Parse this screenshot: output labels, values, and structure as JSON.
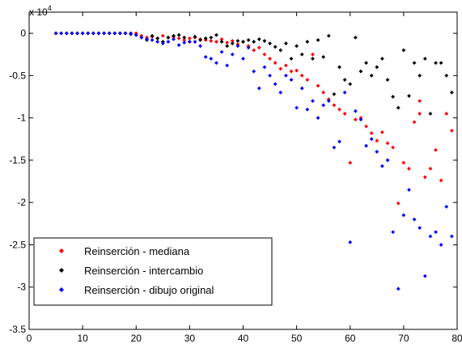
{
  "chart_data": {
    "type": "scatter",
    "title": "",
    "xlabel": "",
    "ylabel": "",
    "y_exponent_label": "x 10",
    "y_exponent_power": "4",
    "xlim": [
      0,
      80
    ],
    "ylim": [
      -3.5,
      0.25
    ],
    "grid": false,
    "legend_position": "bottom-left",
    "x_ticks": [
      "0",
      "10",
      "20",
      "30",
      "40",
      "50",
      "60",
      "70",
      "80"
    ],
    "y_ticks": [
      "0",
      "-0.5",
      "-1",
      "-1.5",
      "-2",
      "-2.5",
      "-3",
      "-3.5"
    ],
    "series": [
      {
        "name": "Reinserción - mediana",
        "color": "#ff0000",
        "points": [
          [
            5,
            0
          ],
          [
            6,
            0
          ],
          [
            7,
            0
          ],
          [
            8,
            0
          ],
          [
            9,
            0
          ],
          [
            10,
            0
          ],
          [
            11,
            0
          ],
          [
            12,
            0
          ],
          [
            13,
            0
          ],
          [
            14,
            0
          ],
          [
            15,
            0
          ],
          [
            16,
            0
          ],
          [
            17,
            0
          ],
          [
            18,
            0
          ],
          [
            19,
            0
          ],
          [
            20,
            0
          ],
          [
            21,
            -0.03
          ],
          [
            22,
            -0.05
          ],
          [
            23,
            -0.04
          ],
          [
            24,
            -0.06
          ],
          [
            25,
            -0.03
          ],
          [
            26,
            -0.05
          ],
          [
            27,
            -0.04
          ],
          [
            28,
            -0.06
          ],
          [
            29,
            -0.08
          ],
          [
            30,
            -0.06
          ],
          [
            31,
            -0.05
          ],
          [
            32,
            -0.07
          ],
          [
            33,
            -0.08
          ],
          [
            34,
            -0.09
          ],
          [
            35,
            -0.1
          ],
          [
            36,
            -0.07
          ],
          [
            37,
            -0.11
          ],
          [
            38,
            -0.09
          ],
          [
            39,
            -0.13
          ],
          [
            40,
            -0.1
          ],
          [
            41,
            -0.15
          ],
          [
            42,
            -0.2
          ],
          [
            43,
            -0.17
          ],
          [
            44,
            -0.25
          ],
          [
            45,
            -0.3
          ],
          [
            46,
            -0.35
          ],
          [
            47,
            -0.42
          ],
          [
            48,
            -0.38
          ],
          [
            49,
            -0.45
          ],
          [
            50,
            -0.44
          ],
          [
            51,
            -0.5
          ],
          [
            52,
            -0.55
          ],
          [
            53,
            -0.25
          ],
          [
            54,
            -0.62
          ],
          [
            55,
            -0.7
          ],
          [
            56,
            -0.78
          ],
          [
            57,
            -0.85
          ],
          [
            58,
            -0.9
          ],
          [
            59,
            -0.95
          ],
          [
            60,
            -1.53
          ],
          [
            61,
            -1.02
          ],
          [
            62,
            -1.0
          ],
          [
            63,
            -1.1
          ],
          [
            64,
            -1.18
          ],
          [
            65,
            -1.27
          ],
          [
            66,
            -1.17
          ],
          [
            67,
            -1.3
          ],
          [
            68,
            -1.35
          ],
          [
            69,
            -2.01
          ],
          [
            70,
            -1.53
          ],
          [
            71,
            -1.6
          ],
          [
            72,
            -1.05
          ],
          [
            73,
            -0.8
          ],
          [
            74,
            -1.7
          ],
          [
            75,
            -1.6
          ],
          [
            76,
            -1.38
          ],
          [
            77,
            -1.74
          ],
          [
            78,
            -0.95
          ],
          [
            79,
            -1.15
          ],
          [
            73,
            -0.95
          ]
        ]
      },
      {
        "name": "Reinserción - intercambio",
        "color": "#000000",
        "points": [
          [
            5,
            0
          ],
          [
            6,
            0
          ],
          [
            7,
            0
          ],
          [
            8,
            0
          ],
          [
            9,
            0
          ],
          [
            10,
            0
          ],
          [
            11,
            0
          ],
          [
            12,
            0
          ],
          [
            13,
            0
          ],
          [
            14,
            0
          ],
          [
            15,
            0
          ],
          [
            16,
            0
          ],
          [
            17,
            0
          ],
          [
            18,
            0
          ],
          [
            19,
            -0.01
          ],
          [
            20,
            -0.02
          ],
          [
            21,
            -0.05
          ],
          [
            22,
            -0.08
          ],
          [
            23,
            -0.03
          ],
          [
            24,
            -0.06
          ],
          [
            25,
            -0.1
          ],
          [
            26,
            -0.05
          ],
          [
            27,
            -0.03
          ],
          [
            28,
            -0.02
          ],
          [
            29,
            -0.05
          ],
          [
            30,
            -0.1
          ],
          [
            31,
            -0.04
          ],
          [
            32,
            -0.08
          ],
          [
            33,
            -0.06
          ],
          [
            34,
            -0.05
          ],
          [
            35,
            -0.02
          ],
          [
            36,
            -0.1
          ],
          [
            37,
            -0.15
          ],
          [
            38,
            -0.12
          ],
          [
            39,
            -0.09
          ],
          [
            40,
            -0.1
          ],
          [
            41,
            -0.08
          ],
          [
            42,
            -0.1
          ],
          [
            43,
            -0.07
          ],
          [
            44,
            -0.09
          ],
          [
            45,
            -0.12
          ],
          [
            46,
            -0.16
          ],
          [
            47,
            -0.2
          ],
          [
            48,
            -0.12
          ],
          [
            49,
            -0.3
          ],
          [
            50,
            -0.15
          ],
          [
            51,
            -0.25
          ],
          [
            52,
            -0.1
          ],
          [
            53,
            -0.3
          ],
          [
            54,
            -0.08
          ],
          [
            55,
            -0.28
          ],
          [
            56,
            -0.03
          ],
          [
            57,
            -0.72
          ],
          [
            58,
            -0.4
          ],
          [
            59,
            -0.55
          ],
          [
            60,
            -0.6
          ],
          [
            61,
            -0.05
          ],
          [
            62,
            -0.45
          ],
          [
            63,
            -0.35
          ],
          [
            64,
            -0.5
          ],
          [
            65,
            -0.4
          ],
          [
            66,
            -0.3
          ],
          [
            67,
            -0.55
          ],
          [
            68,
            -0.75
          ],
          [
            69,
            -0.88
          ],
          [
            70,
            -0.2
          ],
          [
            71,
            -0.74
          ],
          [
            72,
            -0.35
          ],
          [
            73,
            -0.5
          ],
          [
            74,
            -0.3
          ],
          [
            75,
            -0.95
          ],
          [
            76,
            -0.35
          ],
          [
            77,
            -0.35
          ],
          [
            78,
            -0.5
          ],
          [
            79,
            -0.7
          ]
        ]
      },
      {
        "name": "Reinserción - dibujo original",
        "color": "#0000ff",
        "points": [
          [
            5,
            0
          ],
          [
            6,
            0
          ],
          [
            7,
            0
          ],
          [
            8,
            0
          ],
          [
            9,
            0
          ],
          [
            10,
            0
          ],
          [
            11,
            0
          ],
          [
            12,
            0
          ],
          [
            13,
            0
          ],
          [
            14,
            0
          ],
          [
            15,
            0
          ],
          [
            16,
            0
          ],
          [
            17,
            0
          ],
          [
            18,
            0
          ],
          [
            19,
            0
          ],
          [
            20,
            -0.02
          ],
          [
            21,
            -0.05
          ],
          [
            22,
            -0.07
          ],
          [
            23,
            -0.08
          ],
          [
            24,
            -0.1
          ],
          [
            25,
            -0.12
          ],
          [
            26,
            -0.1
          ],
          [
            27,
            -0.07
          ],
          [
            28,
            -0.14
          ],
          [
            29,
            -0.11
          ],
          [
            30,
            -0.1
          ],
          [
            31,
            -0.1
          ],
          [
            32,
            -0.15
          ],
          [
            33,
            -0.28
          ],
          [
            34,
            -0.3
          ],
          [
            35,
            -0.35
          ],
          [
            36,
            -0.22
          ],
          [
            37,
            -0.38
          ],
          [
            38,
            -0.25
          ],
          [
            39,
            -0.15
          ],
          [
            40,
            -0.3
          ],
          [
            41,
            -0.17
          ],
          [
            42,
            -0.45
          ],
          [
            43,
            -0.65
          ],
          [
            44,
            -0.4
          ],
          [
            45,
            -0.5
          ],
          [
            46,
            -0.6
          ],
          [
            47,
            -0.7
          ],
          [
            48,
            -0.5
          ],
          [
            49,
            -0.55
          ],
          [
            50,
            -0.88
          ],
          [
            51,
            -0.65
          ],
          [
            52,
            -0.9
          ],
          [
            53,
            -0.8
          ],
          [
            54,
            -1.0
          ],
          [
            55,
            -0.85
          ],
          [
            56,
            -0.8
          ],
          [
            57,
            -1.35
          ],
          [
            58,
            -1.28
          ],
          [
            59,
            -0.7
          ],
          [
            60,
            -2.47
          ],
          [
            61,
            -0.92
          ],
          [
            62,
            -1.02
          ],
          [
            63,
            -1.33
          ],
          [
            64,
            -1.25
          ],
          [
            65,
            -1.4
          ],
          [
            66,
            -1.57
          ],
          [
            67,
            -1.5
          ],
          [
            68,
            -2.35
          ],
          [
            69,
            -3.02
          ],
          [
            70,
            -2.15
          ],
          [
            71,
            -1.85
          ],
          [
            72,
            -2.2
          ],
          [
            73,
            -2.3
          ],
          [
            74,
            -2.87
          ],
          [
            75,
            -2.4
          ],
          [
            76,
            -2.35
          ],
          [
            77,
            -2.5
          ],
          [
            78,
            -2.05
          ],
          [
            79,
            -2.4
          ]
        ]
      }
    ]
  }
}
